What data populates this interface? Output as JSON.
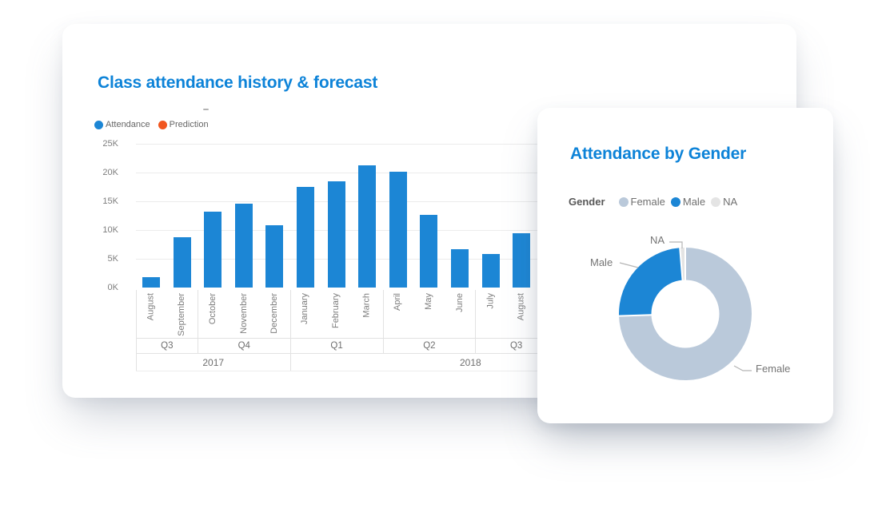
{
  "page": {
    "background_color": "#ffffff"
  },
  "left_card": {
    "title": "Class attendance history & forecast",
    "title_color": "#0d83d8"
  },
  "right_card": {
    "title": "Attendance by Gender",
    "title_color": "#0d83d8",
    "legend_title": "Gender"
  },
  "chart_data": [
    {
      "type": "bar",
      "title": "Class attendance history & forecast",
      "legend_position": "top",
      "legend": [
        {
          "label": "Attendance",
          "color": "#1c86d5"
        },
        {
          "label": "Prediction",
          "color": "#f1561f"
        }
      ],
      "categories": [
        "August",
        "September",
        "October",
        "November",
        "December",
        "January",
        "February",
        "March",
        "April",
        "May",
        "June",
        "July",
        "August"
      ],
      "series": [
        {
          "name": "Attendance",
          "values": [
            1800,
            8800,
            13200,
            14600,
            10800,
            17500,
            18500,
            21300,
            20100,
            12700,
            6600,
            5800,
            9500
          ]
        }
      ],
      "quarter_groups": [
        {
          "label": "Q3",
          "months": 2
        },
        {
          "label": "Q4",
          "months": 3
        },
        {
          "label": "Q1",
          "months": 3
        },
        {
          "label": "Q2",
          "months": 3
        },
        {
          "label": "Q3",
          "months": 2
        }
      ],
      "year_groups": [
        {
          "label": "2017",
          "months": 5
        },
        {
          "label": "2018",
          "months": 8
        }
      ],
      "y_ticks": [
        "0K",
        "5K",
        "10K",
        "15K",
        "20K",
        "25K"
      ],
      "ylim": [
        0,
        25000
      ],
      "grid": true,
      "xlabel": "",
      "ylabel": "",
      "bar_color": "#1c86d5"
    },
    {
      "type": "donut",
      "title": "Attendance by Gender",
      "legend_title": "Gender",
      "legend_position": "top",
      "slices": [
        {
          "label": "Female",
          "pct": 74.5,
          "color": "#bac9da"
        },
        {
          "label": "Male",
          "pct": 24.2,
          "color": "#1c86d5"
        },
        {
          "label": "NA",
          "pct": 1.3,
          "color": "#e4e4e4"
        }
      ]
    }
  ]
}
